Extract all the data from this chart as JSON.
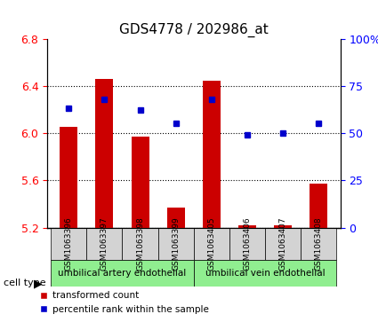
{
  "title": "GDS4778 / 202986_at",
  "samples": [
    "GSM1063396",
    "GSM1063397",
    "GSM1063398",
    "GSM1063399",
    "GSM1063405",
    "GSM1063406",
    "GSM1063407",
    "GSM1063408"
  ],
  "transformed_count": [
    6.05,
    6.46,
    5.97,
    5.37,
    6.44,
    5.22,
    5.22,
    5.57
  ],
  "percentile_rank": [
    63,
    68,
    62,
    55,
    68,
    49,
    50,
    55
  ],
  "ylim_left": [
    5.2,
    6.8
  ],
  "ylim_right": [
    0,
    100
  ],
  "yticks_left": [
    5.2,
    5.6,
    6.0,
    6.4,
    6.8
  ],
  "yticks_right": [
    0,
    25,
    50,
    75,
    100
  ],
  "bar_color": "#cc0000",
  "dot_color": "#0000cc",
  "bar_bottom": 5.2,
  "cell_types": [
    {
      "label": "umbilical artery endothelial",
      "samples_idx": [
        0,
        1,
        2,
        3
      ],
      "color": "#90ee90"
    },
    {
      "label": "umbilical vein endothelial",
      "samples_idx": [
        4,
        5,
        6,
        7
      ],
      "color": "#90ee90"
    }
  ],
  "legend_bar_label": "transformed count",
  "legend_dot_label": "percentile rank within the sample",
  "cell_type_label": "cell type",
  "bg_color": "#ffffff",
  "plot_bg_color": "#ffffff",
  "tick_label_area_color": "#d3d3d3",
  "gridline_style": "dotted",
  "gridline_color": "#000000"
}
